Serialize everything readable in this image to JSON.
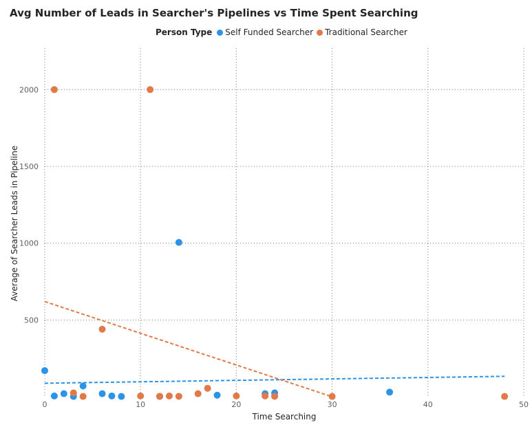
{
  "chart_data": {
    "type": "scatter",
    "title": "Avg Number of Leads in Searcher's Pipelines vs Time Spent Searching",
    "xlabel": "Time Searching",
    "ylabel": "Average of Searcher Leads in Pipeline",
    "xlim": [
      0,
      50
    ],
    "ylim": [
      0,
      2270
    ],
    "xticks": [
      "0",
      "10",
      "20",
      "30",
      "40",
      "50"
    ],
    "yticks": [
      "500",
      "1000",
      "1500",
      "2000"
    ],
    "ytick_values": [
      500,
      1000,
      1500,
      2000
    ],
    "grid": true,
    "legend": {
      "title": "Person Type",
      "position": "top-center",
      "entries": [
        "Self Funded Searcher",
        "Traditional Searcher"
      ]
    },
    "series": [
      {
        "name": "Self Funded Searcher",
        "color": "#2b93e8",
        "points": [
          [
            0,
            170
          ],
          [
            1,
            5
          ],
          [
            2,
            20
          ],
          [
            3,
            2
          ],
          [
            4,
            70
          ],
          [
            6,
            20
          ],
          [
            7,
            5
          ],
          [
            8,
            2
          ],
          [
            12,
            2
          ],
          [
            14,
            1005
          ],
          [
            18,
            10
          ],
          [
            23,
            20
          ],
          [
            24,
            25
          ],
          [
            36,
            30
          ]
        ],
        "trendline": [
          [
            0,
            88
          ],
          [
            48,
            133
          ]
        ]
      },
      {
        "name": "Traditional Searcher",
        "color": "#e07a49",
        "points": [
          [
            1,
            2000
          ],
          [
            3,
            25
          ],
          [
            4,
            2
          ],
          [
            6,
            440
          ],
          [
            10,
            5
          ],
          [
            11,
            2000
          ],
          [
            12,
            3
          ],
          [
            13,
            5
          ],
          [
            14,
            3
          ],
          [
            16,
            20
          ],
          [
            17,
            55
          ],
          [
            20,
            5
          ],
          [
            23,
            5
          ],
          [
            24,
            3
          ],
          [
            30,
            2
          ],
          [
            48,
            2
          ]
        ],
        "trendline": [
          [
            0,
            620
          ],
          [
            30,
            0
          ]
        ]
      }
    ]
  }
}
